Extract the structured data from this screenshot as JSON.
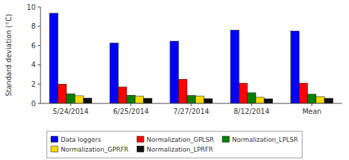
{
  "chart_data": {
    "type": "bar",
    "categories": [
      "5/24/2014",
      "6/25/2014",
      "7/27/2014",
      "8/12/2014",
      "Mean"
    ],
    "series": [
      {
        "name": "Data loggers",
        "color": "#0000FF",
        "values": [
          9.35,
          6.25,
          6.45,
          7.6,
          7.5
        ]
      },
      {
        "name": "Normalization_GPLSR",
        "color": "#FF0000",
        "values": [
          2.0,
          1.7,
          2.5,
          2.1,
          2.1
        ]
      },
      {
        "name": "Normalization_LPLSR",
        "color": "#008000",
        "values": [
          1.0,
          0.85,
          0.82,
          1.1,
          0.95
        ]
      },
      {
        "name": "Normalization_GPRFR",
        "color": "#FFD700",
        "values": [
          0.8,
          0.75,
          0.75,
          0.65,
          0.7
        ]
      },
      {
        "name": "Normalization_LPRFR",
        "color": "#111111",
        "values": [
          0.55,
          0.52,
          0.5,
          0.48,
          0.52
        ]
      }
    ],
    "ylabel": "Standard deviation (°C)",
    "ylim": [
      0,
      10
    ],
    "yticks": [
      0,
      2,
      4,
      6,
      8,
      10
    ],
    "legend": "bottom"
  }
}
